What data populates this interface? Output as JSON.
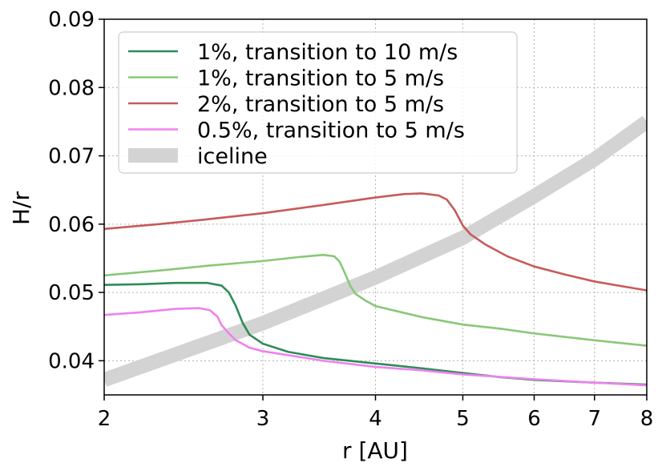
{
  "chart_data": {
    "type": "line",
    "xlabel": "r [AU]",
    "ylabel": "H/r",
    "xscale": "log",
    "xlim": [
      2,
      8
    ],
    "ylim": [
      0.035,
      0.09
    ],
    "x_ticks": [
      2,
      3,
      4,
      5,
      6,
      7,
      8
    ],
    "x_tick_labels": [
      "2",
      "3",
      "4",
      "5",
      "6",
      "7",
      "8"
    ],
    "y_ticks": [
      0.04,
      0.05,
      0.06,
      0.07,
      0.08,
      0.09
    ],
    "y_tick_labels": [
      "0.04",
      "0.05",
      "0.06",
      "0.07",
      "0.08",
      "0.09"
    ],
    "grid": true,
    "legend_position": "top-left",
    "series": [
      {
        "name": "1%, transition to 10 m/s",
        "color": "#2e8b57",
        "points": [
          [
            2.0,
            0.0511
          ],
          [
            2.2,
            0.0512
          ],
          [
            2.4,
            0.0514
          ],
          [
            2.6,
            0.0514
          ],
          [
            2.7,
            0.051
          ],
          [
            2.75,
            0.05
          ],
          [
            2.8,
            0.048
          ],
          [
            2.85,
            0.0455
          ],
          [
            2.9,
            0.0438
          ],
          [
            3.0,
            0.0425
          ],
          [
            3.2,
            0.0413
          ],
          [
            3.5,
            0.0404
          ],
          [
            4.0,
            0.0396
          ],
          [
            4.5,
            0.0389
          ],
          [
            5.0,
            0.0382
          ],
          [
            5.5,
            0.0376
          ],
          [
            6.0,
            0.0372
          ],
          [
            7.0,
            0.0368
          ],
          [
            8.0,
            0.0365
          ]
        ]
      },
      {
        "name": "1%, transition to 5 m/s",
        "color": "#88c878",
        "points": [
          [
            2.0,
            0.0525
          ],
          [
            2.3,
            0.0532
          ],
          [
            2.6,
            0.0539
          ],
          [
            3.0,
            0.0546
          ],
          [
            3.3,
            0.0552
          ],
          [
            3.5,
            0.0555
          ],
          [
            3.6,
            0.0553
          ],
          [
            3.65,
            0.0545
          ],
          [
            3.7,
            0.0528
          ],
          [
            3.75,
            0.051
          ],
          [
            3.8,
            0.0498
          ],
          [
            3.9,
            0.0488
          ],
          [
            4.0,
            0.048
          ],
          [
            4.5,
            0.0464
          ],
          [
            5.0,
            0.0453
          ],
          [
            5.5,
            0.0447
          ],
          [
            6.0,
            0.044
          ],
          [
            7.0,
            0.043
          ],
          [
            8.0,
            0.0422
          ]
        ]
      },
      {
        "name": "2%, transition to 5 m/s",
        "color": "#c85a5a",
        "points": [
          [
            2.0,
            0.0593
          ],
          [
            2.3,
            0.06
          ],
          [
            2.6,
            0.0607
          ],
          [
            3.0,
            0.0616
          ],
          [
            3.5,
            0.0628
          ],
          [
            4.0,
            0.0639
          ],
          [
            4.3,
            0.0644
          ],
          [
            4.5,
            0.0645
          ],
          [
            4.7,
            0.0642
          ],
          [
            4.8,
            0.0636
          ],
          [
            4.9,
            0.062
          ],
          [
            5.0,
            0.0598
          ],
          [
            5.1,
            0.0585
          ],
          [
            5.3,
            0.057
          ],
          [
            5.6,
            0.0553
          ],
          [
            6.0,
            0.0538
          ],
          [
            6.5,
            0.0526
          ],
          [
            7.0,
            0.0516
          ],
          [
            8.0,
            0.0503
          ]
        ]
      },
      {
        "name": "0.5%, transition to 5 m/s",
        "color": "#ee82ee",
        "points": [
          [
            2.0,
            0.0467
          ],
          [
            2.2,
            0.0471
          ],
          [
            2.4,
            0.0476
          ],
          [
            2.55,
            0.0477
          ],
          [
            2.62,
            0.0474
          ],
          [
            2.67,
            0.0465
          ],
          [
            2.7,
            0.0452
          ],
          [
            2.75,
            0.044
          ],
          [
            2.8,
            0.043
          ],
          [
            2.9,
            0.0419
          ],
          [
            3.0,
            0.0414
          ],
          [
            3.5,
            0.04
          ],
          [
            4.0,
            0.0391
          ],
          [
            4.5,
            0.0386
          ],
          [
            5.0,
            0.038
          ],
          [
            6.0,
            0.0373
          ],
          [
            7.0,
            0.0368
          ],
          [
            8.0,
            0.0364
          ]
        ]
      },
      {
        "name": "iceline",
        "color": "#d3d3d3",
        "points": [
          [
            2.0,
            0.0372
          ],
          [
            3.0,
            0.0455
          ],
          [
            4.0,
            0.0522
          ],
          [
            5.0,
            0.058
          ],
          [
            6.0,
            0.0641
          ],
          [
            7.0,
            0.0695
          ],
          [
            8.0,
            0.075
          ]
        ]
      }
    ]
  }
}
